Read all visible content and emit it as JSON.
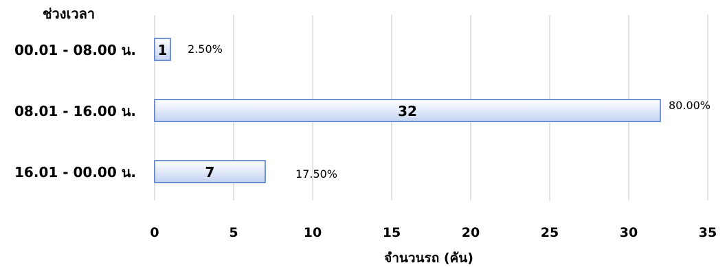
{
  "chart_data": {
    "type": "bar",
    "orientation": "horizontal",
    "ylabel": "ช่วงเวลา",
    "xlabel": "จำนวนรถ (คัน)",
    "categories": [
      "00.01 - 08.00 น.",
      "08.01 - 16.00 น.",
      "16.01 - 00.00 น."
    ],
    "values": [
      1,
      32,
      7
    ],
    "value_labels": [
      "1",
      "32",
      "7"
    ],
    "percent_labels": [
      "2.50%",
      "80.00%",
      "17.50%"
    ],
    "xlim": [
      0,
      35
    ],
    "xticks": [
      "0",
      "5",
      "10",
      "15",
      "20",
      "25",
      "30",
      "35"
    ],
    "grid": true,
    "legend": "none",
    "colors": {
      "bar_top": "#ffffff",
      "bar_bottom": "#c4d3f2",
      "bar_border": "#4472c4",
      "grid": "#d9d9d9"
    }
  }
}
